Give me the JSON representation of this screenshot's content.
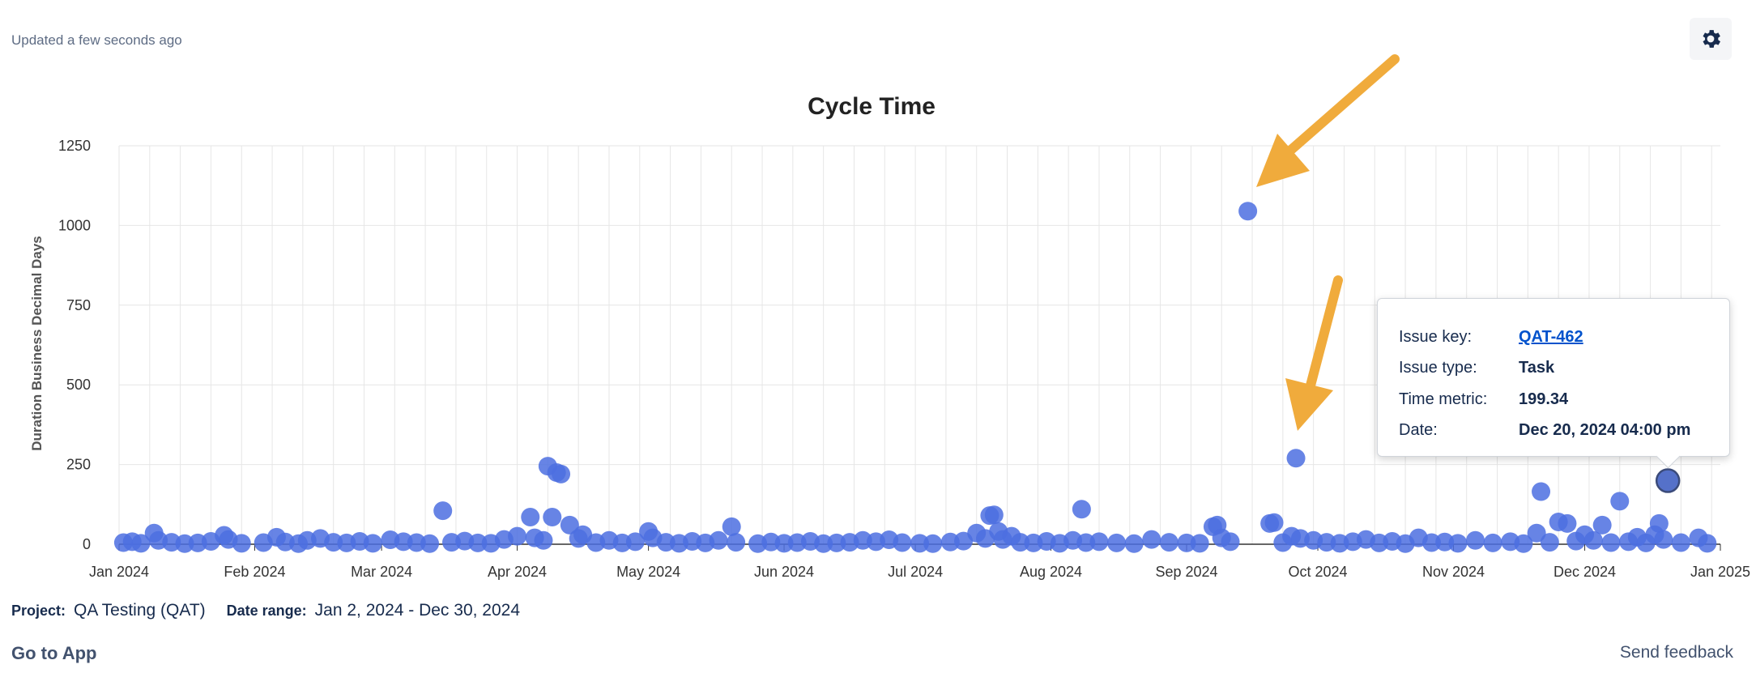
{
  "status": {
    "updated_text": "Updated a few seconds ago"
  },
  "toolbar": {
    "settings_icon": "gear-icon"
  },
  "chart_data": {
    "type": "scatter",
    "title": "Cycle Time",
    "ylabel": "Duration Business Decimal Days",
    "xlabel": "",
    "ylim": [
      0,
      1250
    ],
    "yticks": [
      0,
      250,
      500,
      750,
      1000,
      1250
    ],
    "xlim": [
      "2024-01-01",
      "2025-01-01"
    ],
    "xticks": [
      {
        "date": "2024-01-01",
        "label": "Jan 2024"
      },
      {
        "date": "2024-02-01",
        "label": "Feb 2024"
      },
      {
        "date": "2024-03-01",
        "label": "Mar 2024"
      },
      {
        "date": "2024-04-01",
        "label": "Apr 2024"
      },
      {
        "date": "2024-05-01",
        "label": "May 2024"
      },
      {
        "date": "2024-06-01",
        "label": "Jun 2024"
      },
      {
        "date": "2024-07-01",
        "label": "Jul 2024"
      },
      {
        "date": "2024-08-01",
        "label": "Aug 2024"
      },
      {
        "date": "2024-09-01",
        "label": "Sep 2024"
      },
      {
        "date": "2024-10-01",
        "label": "Oct 2024"
      },
      {
        "date": "2024-11-01",
        "label": "Nov 2024"
      },
      {
        "date": "2024-12-01",
        "label": "Dec 2024"
      },
      {
        "date": "2025-01-01",
        "label": "Jan 2025"
      }
    ],
    "grid": true,
    "marker_color": "#4c6ee0",
    "highlight_color": "#5571c9",
    "points": [
      {
        "x": "2024-01-02",
        "y": 5
      },
      {
        "x": "2024-01-04",
        "y": 8
      },
      {
        "x": "2024-01-06",
        "y": 3
      },
      {
        "x": "2024-01-09",
        "y": 35
      },
      {
        "x": "2024-01-10",
        "y": 12
      },
      {
        "x": "2024-01-13",
        "y": 6
      },
      {
        "x": "2024-01-16",
        "y": 2
      },
      {
        "x": "2024-01-19",
        "y": 4
      },
      {
        "x": "2024-01-22",
        "y": 9
      },
      {
        "x": "2024-01-25",
        "y": 28
      },
      {
        "x": "2024-01-26",
        "y": 15
      },
      {
        "x": "2024-01-29",
        "y": 3
      },
      {
        "x": "2024-02-03",
        "y": 5
      },
      {
        "x": "2024-02-06",
        "y": 22
      },
      {
        "x": "2024-02-08",
        "y": 7
      },
      {
        "x": "2024-02-11",
        "y": 2
      },
      {
        "x": "2024-02-13",
        "y": 12
      },
      {
        "x": "2024-02-16",
        "y": 18
      },
      {
        "x": "2024-02-19",
        "y": 6
      },
      {
        "x": "2024-02-22",
        "y": 4
      },
      {
        "x": "2024-02-25",
        "y": 9
      },
      {
        "x": "2024-02-28",
        "y": 3
      },
      {
        "x": "2024-03-03",
        "y": 14
      },
      {
        "x": "2024-03-06",
        "y": 8
      },
      {
        "x": "2024-03-09",
        "y": 5
      },
      {
        "x": "2024-03-12",
        "y": 2
      },
      {
        "x": "2024-03-15",
        "y": 105
      },
      {
        "x": "2024-03-17",
        "y": 6
      },
      {
        "x": "2024-03-20",
        "y": 10
      },
      {
        "x": "2024-03-23",
        "y": 4
      },
      {
        "x": "2024-03-26",
        "y": 3
      },
      {
        "x": "2024-03-29",
        "y": 15
      },
      {
        "x": "2024-04-01",
        "y": 25
      },
      {
        "x": "2024-04-04",
        "y": 85
      },
      {
        "x": "2024-04-05",
        "y": 20
      },
      {
        "x": "2024-04-07",
        "y": 12
      },
      {
        "x": "2024-04-08",
        "y": 245
      },
      {
        "x": "2024-04-09",
        "y": 85
      },
      {
        "x": "2024-04-10",
        "y": 225
      },
      {
        "x": "2024-04-11",
        "y": 220
      },
      {
        "x": "2024-04-13",
        "y": 60
      },
      {
        "x": "2024-04-15",
        "y": 18
      },
      {
        "x": "2024-04-16",
        "y": 30
      },
      {
        "x": "2024-04-19",
        "y": 5
      },
      {
        "x": "2024-04-22",
        "y": 12
      },
      {
        "x": "2024-04-25",
        "y": 4
      },
      {
        "x": "2024-04-28",
        "y": 8
      },
      {
        "x": "2024-05-01",
        "y": 40
      },
      {
        "x": "2024-05-02",
        "y": 20
      },
      {
        "x": "2024-05-05",
        "y": 6
      },
      {
        "x": "2024-05-08",
        "y": 3
      },
      {
        "x": "2024-05-11",
        "y": 9
      },
      {
        "x": "2024-05-14",
        "y": 4
      },
      {
        "x": "2024-05-17",
        "y": 12
      },
      {
        "x": "2024-05-20",
        "y": 55
      },
      {
        "x": "2024-05-21",
        "y": 6
      },
      {
        "x": "2024-05-26",
        "y": 2
      },
      {
        "x": "2024-05-29",
        "y": 7
      },
      {
        "x": "2024-06-01",
        "y": 3
      },
      {
        "x": "2024-06-04",
        "y": 5
      },
      {
        "x": "2024-06-07",
        "y": 9
      },
      {
        "x": "2024-06-10",
        "y": 2
      },
      {
        "x": "2024-06-13",
        "y": 4
      },
      {
        "x": "2024-06-16",
        "y": 6
      },
      {
        "x": "2024-06-19",
        "y": 12
      },
      {
        "x": "2024-06-22",
        "y": 8
      },
      {
        "x": "2024-06-25",
        "y": 14
      },
      {
        "x": "2024-06-28",
        "y": 5
      },
      {
        "x": "2024-07-02",
        "y": 3
      },
      {
        "x": "2024-07-05",
        "y": 2
      },
      {
        "x": "2024-07-09",
        "y": 7
      },
      {
        "x": "2024-07-12",
        "y": 10
      },
      {
        "x": "2024-07-15",
        "y": 35
      },
      {
        "x": "2024-07-17",
        "y": 18
      },
      {
        "x": "2024-07-18",
        "y": 90
      },
      {
        "x": "2024-07-19",
        "y": 92
      },
      {
        "x": "2024-07-20",
        "y": 40
      },
      {
        "x": "2024-07-21",
        "y": 15
      },
      {
        "x": "2024-07-23",
        "y": 25
      },
      {
        "x": "2024-07-25",
        "y": 6
      },
      {
        "x": "2024-07-28",
        "y": 4
      },
      {
        "x": "2024-07-31",
        "y": 9
      },
      {
        "x": "2024-08-03",
        "y": 3
      },
      {
        "x": "2024-08-06",
        "y": 12
      },
      {
        "x": "2024-08-08",
        "y": 110
      },
      {
        "x": "2024-08-09",
        "y": 5
      },
      {
        "x": "2024-08-12",
        "y": 8
      },
      {
        "x": "2024-08-16",
        "y": 4
      },
      {
        "x": "2024-08-20",
        "y": 2
      },
      {
        "x": "2024-08-24",
        "y": 15
      },
      {
        "x": "2024-08-28",
        "y": 6
      },
      {
        "x": "2024-09-01",
        "y": 4
      },
      {
        "x": "2024-09-04",
        "y": 3
      },
      {
        "x": "2024-09-07",
        "y": 55
      },
      {
        "x": "2024-09-08",
        "y": 60
      },
      {
        "x": "2024-09-09",
        "y": 20
      },
      {
        "x": "2024-09-11",
        "y": 8
      },
      {
        "x": "2024-09-15",
        "y": 1045
      },
      {
        "x": "2024-09-20",
        "y": 65
      },
      {
        "x": "2024-09-21",
        "y": 68
      },
      {
        "x": "2024-09-23",
        "y": 5
      },
      {
        "x": "2024-09-25",
        "y": 25
      },
      {
        "x": "2024-09-26",
        "y": 270
      },
      {
        "x": "2024-09-27",
        "y": 18
      },
      {
        "x": "2024-09-30",
        "y": 12
      },
      {
        "x": "2024-10-03",
        "y": 6
      },
      {
        "x": "2024-10-06",
        "y": 3
      },
      {
        "x": "2024-10-09",
        "y": 8
      },
      {
        "x": "2024-10-12",
        "y": 15
      },
      {
        "x": "2024-10-15",
        "y": 4
      },
      {
        "x": "2024-10-18",
        "y": 9
      },
      {
        "x": "2024-10-21",
        "y": 2
      },
      {
        "x": "2024-10-24",
        "y": 20
      },
      {
        "x": "2024-10-27",
        "y": 5
      },
      {
        "x": "2024-10-30",
        "y": 7
      },
      {
        "x": "2024-11-02",
        "y": 3
      },
      {
        "x": "2024-11-06",
        "y": 12
      },
      {
        "x": "2024-11-10",
        "y": 4
      },
      {
        "x": "2024-11-14",
        "y": 8
      },
      {
        "x": "2024-11-17",
        "y": 2
      },
      {
        "x": "2024-11-20",
        "y": 35
      },
      {
        "x": "2024-11-21",
        "y": 165
      },
      {
        "x": "2024-11-23",
        "y": 6
      },
      {
        "x": "2024-11-25",
        "y": 70
      },
      {
        "x": "2024-11-27",
        "y": 65
      },
      {
        "x": "2024-11-29",
        "y": 10
      },
      {
        "x": "2024-12-01",
        "y": 30
      },
      {
        "x": "2024-12-03",
        "y": 12
      },
      {
        "x": "2024-12-05",
        "y": 60
      },
      {
        "x": "2024-12-07",
        "y": 5
      },
      {
        "x": "2024-12-09",
        "y": 135
      },
      {
        "x": "2024-12-11",
        "y": 8
      },
      {
        "x": "2024-12-13",
        "y": 22
      },
      {
        "x": "2024-12-15",
        "y": 4
      },
      {
        "x": "2024-12-17",
        "y": 30
      },
      {
        "x": "2024-12-18",
        "y": 65
      },
      {
        "x": "2024-12-19",
        "y": 15
      },
      {
        "x": "2024-12-23",
        "y": 5
      },
      {
        "x": "2024-12-27",
        "y": 20
      },
      {
        "x": "2024-12-29",
        "y": 3
      }
    ],
    "highlighted_point": {
      "x": "2024-12-20",
      "y": 199.34
    }
  },
  "tooltip": {
    "issue_key_label": "Issue key:",
    "issue_key_value": "QAT-462",
    "issue_type_label": "Issue type:",
    "issue_type_value": "Task",
    "time_metric_label": "Time metric:",
    "time_metric_value": "199.34",
    "date_label": "Date:",
    "date_value": "Dec 20, 2024 04:00 pm"
  },
  "annotations": {
    "arrow_color": "#f0ab3c"
  },
  "footer": {
    "project_label": "Project:",
    "project_value": "QA Testing (QAT)",
    "date_range_label": "Date range:",
    "date_range_value": "Jan 2, 2024 - Dec 30, 2024",
    "go_to_app": "Go to App",
    "send_feedback": "Send feedback"
  }
}
